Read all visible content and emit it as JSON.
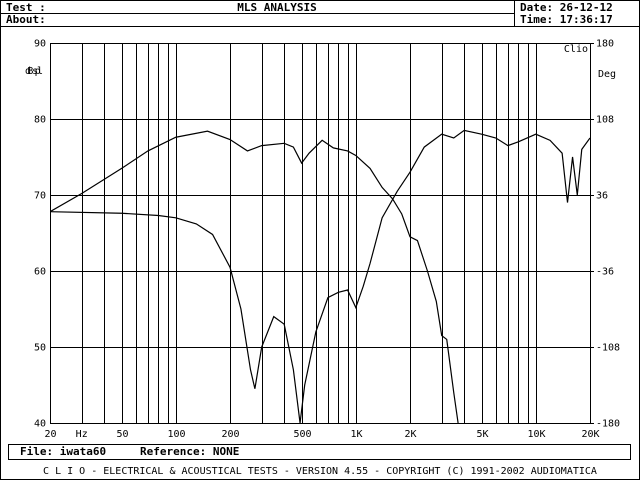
{
  "header": {
    "test_label": "Test :",
    "title": "MLS ANALYSIS",
    "date": "Date: 26-12-12",
    "about_label": "About:",
    "time": "Time: 17:36:17"
  },
  "footer": {
    "file": "File: iwata60",
    "reference": "Reference: NONE",
    "credits": "C L I O  -  ELECTRICAL & ACOUSTICAL TESTS  -  VERSION 4.55  -  COPYRIGHT (C) 1991-2002 AUDIOMATICA"
  },
  "chart_data": {
    "type": "line",
    "brand": "Clio",
    "ylabel": "dB spl",
    "y2label": "Deg",
    "xunit": "Hz",
    "xscale": "log",
    "grid": true,
    "xlim": [
      20,
      20000
    ],
    "ylim": [
      40,
      90
    ],
    "y2lim": [
      -180,
      180
    ],
    "xticks": [
      20,
      50,
      100,
      200,
      500,
      {
        "value": 1000,
        "label": "1K"
      },
      {
        "value": 2000,
        "label": "2K"
      },
      {
        "value": 5000,
        "label": "5K"
      },
      {
        "value": 10000,
        "label": "10K"
      },
      {
        "value": 20000,
        "label": "20K"
      }
    ],
    "xgrid": [
      30,
      40,
      60,
      70,
      80,
      90,
      300,
      400,
      600,
      700,
      800,
      900,
      3000,
      4000,
      6000,
      7000,
      8000,
      9000
    ],
    "yticks": [
      40,
      50,
      60,
      70,
      80,
      90
    ],
    "y2ticks": [
      -180,
      -108,
      -36,
      36,
      108,
      180
    ],
    "series": [
      {
        "color": "#000000",
        "x": [
          20,
          30,
          50,
          70,
          100,
          150,
          200,
          250,
          300,
          400,
          450,
          500,
          550,
          650,
          750,
          900,
          1000,
          1200,
          1400,
          1600,
          1800,
          2000,
          2200,
          2500,
          2800,
          3000,
          3200,
          3500,
          3700
        ],
        "values": [
          67.8,
          70.2,
          73.5,
          75.8,
          77.6,
          78.4,
          77.3,
          75.8,
          76.5,
          76.8,
          76.3,
          74.2,
          75.5,
          77.2,
          76.2,
          75.8,
          75.2,
          73.5,
          71,
          69.5,
          67.5,
          64.5,
          64,
          60,
          56,
          51.5,
          51,
          44,
          40
        ]
      },
      {
        "color": "#000000",
        "axis": "y2",
        "x": [
          20,
          50,
          80,
          100,
          130,
          160,
          200,
          230,
          260,
          275,
          300,
          350,
          400,
          450,
          490,
          520,
          600,
          700,
          800,
          900,
          1000,
          1100,
          1200,
          1400,
          1700,
          2000,
          2400,
          3000,
          3500,
          4000,
          5000,
          6000,
          7000,
          8000,
          10000,
          12000,
          14000,
          15000,
          16000,
          17000,
          18000,
          20000
        ],
        "values": [
          20.2,
          18.7,
          16.6,
          14.4,
          8.6,
          -1.4,
          -32.4,
          -72,
          -129.6,
          -147.6,
          -108,
          -79.2,
          -86.4,
          -129.6,
          -180,
          -144,
          -93.6,
          -61.2,
          -56.2,
          -54,
          -70.6,
          -50.4,
          -28.8,
          14.4,
          39.6,
          57.6,
          81.4,
          93.6,
          90,
          97.2,
          93.6,
          90,
          82.8,
          86.4,
          93.6,
          87.8,
          75.6,
          28.8,
          72,
          36,
          79.2,
          90
        ]
      }
    ]
  }
}
